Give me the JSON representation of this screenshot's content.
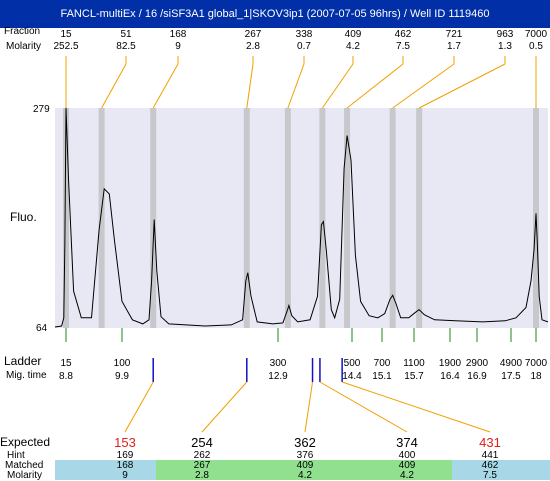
{
  "title": "FANCL-multiEx / 16 /siSF3A1 global_1|SKOV3ip1 (2007-07-05 96hrs) / Well ID 1119460",
  "top_labels": {
    "size": "Fraction",
    "molarity": "Molarity"
  },
  "chart_data": {
    "type": "line",
    "ylabel": "Fluo.",
    "y_ticks": [
      "279",
      "64"
    ],
    "ylim": [
      64,
      279
    ],
    "x_label_ladder": "Ladder",
    "x_label_migtime": "Mig. time",
    "peaks": [
      {
        "size": "15",
        "molarity": "252.5",
        "mig_time": 8.8
      },
      {
        "size": "51",
        "molarity": "82.5",
        "mig_time": 9.5
      },
      {
        "size": "168",
        "molarity": "9",
        "mig_time": 10.5
      },
      {
        "size": "267",
        "molarity": "2.8",
        "mig_time": 12.3
      },
      {
        "size": "338",
        "molarity": "0.7",
        "mig_time": 13.1
      },
      {
        "size": "409",
        "molarity": "4.2",
        "mig_time": 13.8
      },
      {
        "size": "462",
        "molarity": "7.5",
        "mig_time": 14.3
      },
      {
        "size": "721",
        "molarity": "1.7",
        "mig_time": 15.3
      },
      {
        "size": "963",
        "molarity": "1.3",
        "mig_time": 15.8
      },
      {
        "size": "7000",
        "molarity": "0.5",
        "mig_time": 18
      }
    ],
    "ladder": [
      {
        "size": "15",
        "mig_time": "8.8"
      },
      {
        "size": "100",
        "mig_time": "9.9"
      },
      {
        "size": "300",
        "mig_time": "12.9"
      },
      {
        "size": "500",
        "mig_time": "14.4"
      },
      {
        "size": "700",
        "mig_time": "15.1"
      },
      {
        "size": "1100",
        "mig_time": "15.7"
      },
      {
        "size": "1900",
        "mig_time": "16.4"
      },
      {
        "size": "2900",
        "mig_time": "16.9"
      },
      {
        "size": "4900",
        "mig_time": "17.5"
      },
      {
        "size": "7000",
        "mig_time": "18"
      }
    ],
    "trace": [
      [
        8.3,
        65
      ],
      [
        8.6,
        66
      ],
      [
        8.7,
        74
      ],
      [
        8.75,
        150
      ],
      [
        8.8,
        279
      ],
      [
        8.85,
        210
      ],
      [
        8.95,
        100
      ],
      [
        9.1,
        74
      ],
      [
        9.3,
        74
      ],
      [
        9.45,
        160
      ],
      [
        9.55,
        200
      ],
      [
        9.65,
        195
      ],
      [
        9.75,
        150
      ],
      [
        9.9,
        90
      ],
      [
        10.1,
        72
      ],
      [
        10.3,
        68
      ],
      [
        10.42,
        72
      ],
      [
        10.47,
        110
      ],
      [
        10.52,
        170
      ],
      [
        10.57,
        120
      ],
      [
        10.65,
        75
      ],
      [
        10.8,
        68
      ],
      [
        11.5,
        66
      ],
      [
        12.0,
        67
      ],
      [
        12.22,
        72
      ],
      [
        12.28,
        110
      ],
      [
        12.32,
        118
      ],
      [
        12.38,
        95
      ],
      [
        12.5,
        70
      ],
      [
        12.8,
        68
      ],
      [
        13.0,
        69
      ],
      [
        13.08,
        80
      ],
      [
        13.12,
        86
      ],
      [
        13.18,
        76
      ],
      [
        13.3,
        70
      ],
      [
        13.55,
        72
      ],
      [
        13.7,
        95
      ],
      [
        13.78,
        165
      ],
      [
        13.82,
        168
      ],
      [
        13.88,
        140
      ],
      [
        13.98,
        82
      ],
      [
        14.05,
        74
      ],
      [
        14.15,
        92
      ],
      [
        14.24,
        220
      ],
      [
        14.3,
        252
      ],
      [
        14.38,
        228
      ],
      [
        14.48,
        135
      ],
      [
        14.6,
        90
      ],
      [
        14.8,
        76
      ],
      [
        15.0,
        74
      ],
      [
        15.15,
        78
      ],
      [
        15.25,
        92
      ],
      [
        15.3,
        96
      ],
      [
        15.36,
        88
      ],
      [
        15.45,
        74
      ],
      [
        15.6,
        74
      ],
      [
        15.72,
        79
      ],
      [
        15.8,
        82
      ],
      [
        15.9,
        77
      ],
      [
        16.1,
        72
      ],
      [
        16.5,
        71
      ],
      [
        17.0,
        70
      ],
      [
        17.4,
        71
      ],
      [
        17.6,
        74
      ],
      [
        17.8,
        84
      ],
      [
        17.9,
        110
      ],
      [
        17.96,
        140
      ],
      [
        18.0,
        176
      ],
      [
        18.03,
        150
      ],
      [
        18.08,
        95
      ],
      [
        18.15,
        72
      ],
      [
        18.3,
        70
      ]
    ]
  },
  "expected": {
    "row_labels": {
      "expected": "Expected",
      "hint": "Hint",
      "matched": "Matched",
      "molarity": "Molarity"
    },
    "columns": [
      {
        "expected": "153",
        "hint": "169",
        "matched": "168",
        "molarity": "9",
        "flag": true,
        "mig_time": 10.5
      },
      {
        "expected": "254",
        "hint": "262",
        "matched": "267",
        "molarity": "2.8",
        "flag": false,
        "mig_time": 12.3
      },
      {
        "expected": "362",
        "hint": "376",
        "matched": "409",
        "molarity": "4.2",
        "flag": false,
        "mig_time": 13.6
      },
      {
        "expected": "374",
        "hint": "400",
        "matched": "409",
        "molarity": "4.2",
        "flag": false,
        "mig_time": 13.75
      },
      {
        "expected": "431",
        "hint": "441",
        "matched": "462",
        "molarity": "7.5",
        "flag": true,
        "mig_time": 14.2
      }
    ]
  },
  "colors": {
    "title_bg": "#002fa7",
    "plot_bg": "#e8e8f4",
    "peak_band": "#c8c8cc",
    "leader": "#f0a000",
    "ladder_tick": "#1a8a1a",
    "expected_mark": "#1010c8",
    "flag_red": "#e0201a",
    "cell_blue": "#a8d8e8",
    "cell_green": "#90e090"
  }
}
